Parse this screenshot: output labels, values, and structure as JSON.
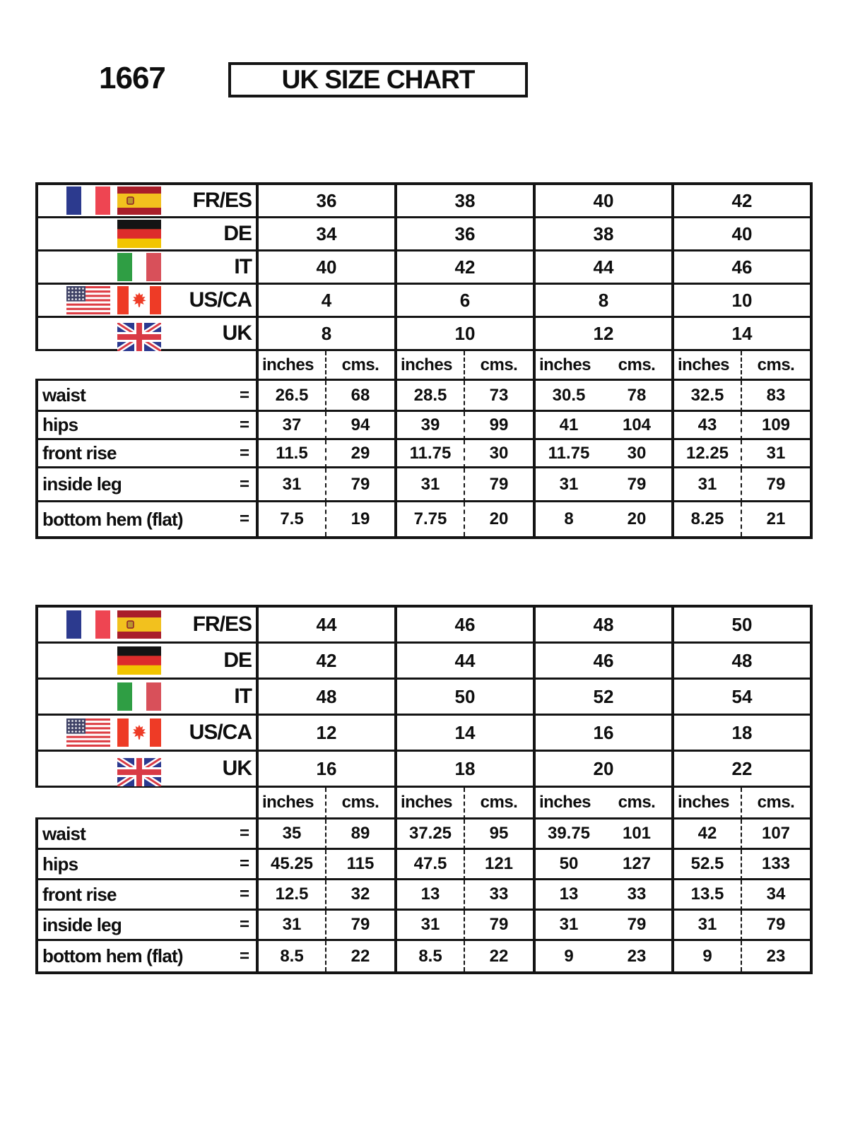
{
  "header": {
    "style_code": "1667",
    "title": "UK SIZE CHART"
  },
  "units": {
    "inches": "inches",
    "cms": "cms.",
    "equals": "="
  },
  "tables": [
    {
      "size_rows": [
        {
          "region": "FR/ES",
          "flags": [
            "france",
            "spain"
          ],
          "sizes": [
            "36",
            "38",
            "40",
            "42"
          ]
        },
        {
          "region": "DE",
          "flags": [
            "germany"
          ],
          "sizes": [
            "34",
            "36",
            "38",
            "40"
          ]
        },
        {
          "region": "IT",
          "flags": [
            "italy"
          ],
          "sizes": [
            "40",
            "42",
            "44",
            "46"
          ]
        },
        {
          "region": "US/CA",
          "flags": [
            "usa",
            "canada"
          ],
          "sizes": [
            "4",
            "6",
            "8",
            "10"
          ]
        },
        {
          "region": "UK",
          "flags": [
            "uk"
          ],
          "sizes": [
            "8",
            "10",
            "12",
            "14"
          ]
        }
      ],
      "measurements": [
        {
          "label": "waist",
          "values": [
            [
              "26.5",
              "68"
            ],
            [
              "28.5",
              "73"
            ],
            [
              "30.5",
              "78"
            ],
            [
              "32.5",
              "83"
            ]
          ]
        },
        {
          "label": "hips",
          "values": [
            [
              "37",
              "94"
            ],
            [
              "39",
              "99"
            ],
            [
              "41",
              "104"
            ],
            [
              "43",
              "109"
            ]
          ]
        },
        {
          "label": "front rise",
          "values": [
            [
              "11.5",
              "29"
            ],
            [
              "11.75",
              "30"
            ],
            [
              "11.75",
              "30"
            ],
            [
              "12.25",
              "31"
            ]
          ]
        },
        {
          "label": "inside leg",
          "values": [
            [
              "31",
              "79"
            ],
            [
              "31",
              "79"
            ],
            [
              "31",
              "79"
            ],
            [
              "31",
              "79"
            ]
          ]
        },
        {
          "label": "bottom hem (flat)",
          "values": [
            [
              "7.5",
              "19"
            ],
            [
              "7.75",
              "20"
            ],
            [
              "8",
              "20"
            ],
            [
              "8.25",
              "21"
            ]
          ]
        }
      ]
    },
    {
      "size_rows": [
        {
          "region": "FR/ES",
          "flags": [
            "france",
            "spain"
          ],
          "sizes": [
            "44",
            "46",
            "48",
            "50"
          ]
        },
        {
          "region": "DE",
          "flags": [
            "germany"
          ],
          "sizes": [
            "42",
            "44",
            "46",
            "48"
          ]
        },
        {
          "region": "IT",
          "flags": [
            "italy"
          ],
          "sizes": [
            "48",
            "50",
            "52",
            "54"
          ]
        },
        {
          "region": "US/CA",
          "flags": [
            "usa",
            "canada"
          ],
          "sizes": [
            "12",
            "14",
            "16",
            "18"
          ]
        },
        {
          "region": "UK",
          "flags": [
            "uk"
          ],
          "sizes": [
            "16",
            "18",
            "20",
            "22"
          ]
        }
      ],
      "measurements": [
        {
          "label": "waist",
          "values": [
            [
              "35",
              "89"
            ],
            [
              "37.25",
              "95"
            ],
            [
              "39.75",
              "101"
            ],
            [
              "42",
              "107"
            ]
          ]
        },
        {
          "label": "hips",
          "values": [
            [
              "45.25",
              "115"
            ],
            [
              "47.5",
              "121"
            ],
            [
              "50",
              "127"
            ],
            [
              "52.5",
              "133"
            ]
          ]
        },
        {
          "label": "front rise",
          "values": [
            [
              "12.5",
              "32"
            ],
            [
              "13",
              "33"
            ],
            [
              "13",
              "33"
            ],
            [
              "13.5",
              "34"
            ]
          ]
        },
        {
          "label": "inside leg",
          "values": [
            [
              "31",
              "79"
            ],
            [
              "31",
              "79"
            ],
            [
              "31",
              "79"
            ],
            [
              "31",
              "79"
            ]
          ]
        },
        {
          "label": "bottom hem (flat)",
          "values": [
            [
              "8.5",
              "22"
            ],
            [
              "8.5",
              "22"
            ],
            [
              "9",
              "23"
            ],
            [
              "9",
              "23"
            ]
          ]
        }
      ]
    }
  ]
}
